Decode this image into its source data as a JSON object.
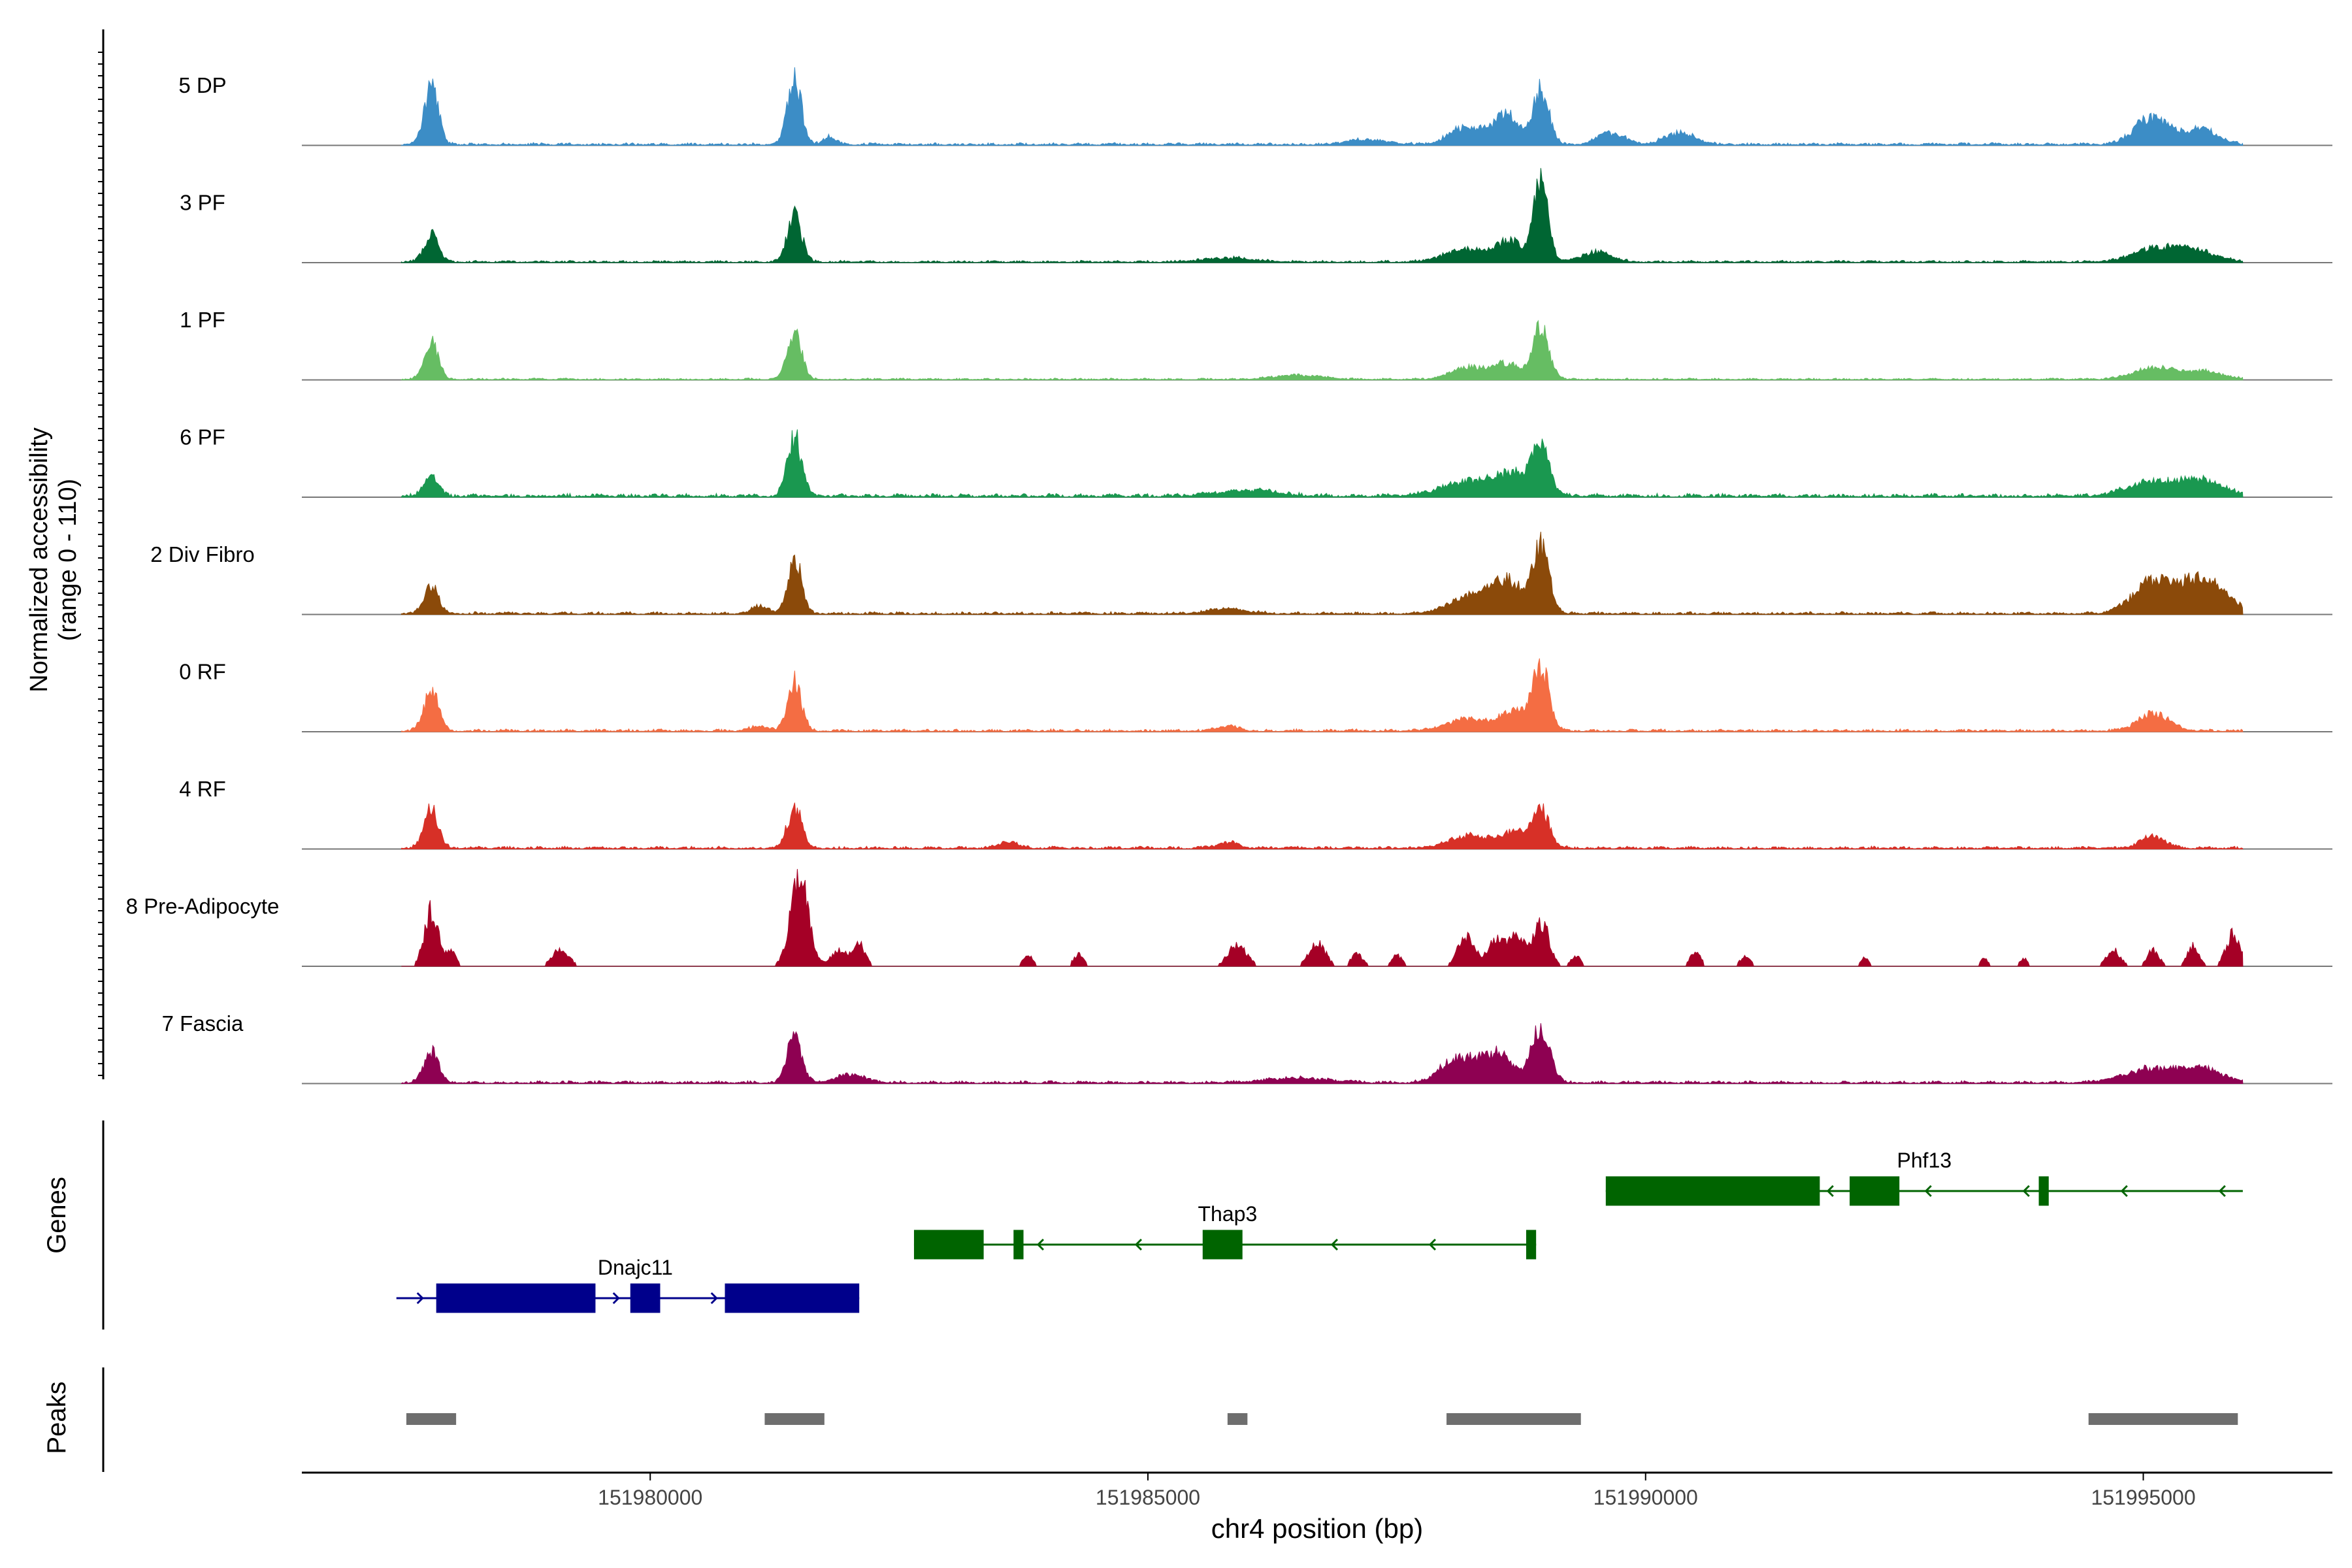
{
  "chart_data": {
    "type": "area",
    "title": "",
    "xlabel": "chr4 position (bp)",
    "region": {
      "chrom": "chr4",
      "start": 151977500,
      "end": 151996000
    },
    "xlim": [
      151976500,
      151996900
    ],
    "ylabel_lines": [
      "Normalized accessibility",
      "(range 0 - 110)"
    ],
    "ylim": [
      0,
      110
    ],
    "x_ticks": [
      {
        "value": 151980000,
        "label": "151980000"
      },
      {
        "value": 151985000,
        "label": "151985000"
      },
      {
        "value": 151990000,
        "label": "151990000"
      },
      {
        "value": 151995000,
        "label": "151995000"
      }
    ],
    "series": [
      {
        "name": "5 DP",
        "color": "#3c8dc6",
        "noise": 3.0,
        "seed": 11,
        "peaks": [
          [
            151977800,
            60,
            70
          ],
          [
            151981450,
            65,
            70
          ],
          [
            151981800,
            8,
            60
          ],
          [
            151988200,
            18,
            160
          ],
          [
            151988600,
            30,
            130
          ],
          [
            151988950,
            55,
            80
          ],
          [
            151989650,
            12,
            130
          ],
          [
            151990350,
            12,
            150
          ],
          [
            151995100,
            28,
            180
          ],
          [
            151995600,
            16,
            150
          ],
          [
            151987200,
            5,
            200
          ]
        ]
      },
      {
        "name": "3 PF",
        "color": "#006633",
        "noise": 2.5,
        "seed": 23,
        "peaks": [
          [
            151977800,
            28,
            70
          ],
          [
            151981450,
            48,
            70
          ],
          [
            151988200,
            12,
            220
          ],
          [
            151988650,
            20,
            150
          ],
          [
            151988950,
            82,
            70
          ],
          [
            151989500,
            10,
            150
          ],
          [
            151995100,
            12,
            220
          ],
          [
            151995500,
            12,
            220
          ],
          [
            151985800,
            4,
            250
          ]
        ]
      },
      {
        "name": "1 PF",
        "color": "#66bd63",
        "noise": 2.0,
        "seed": 37,
        "peaks": [
          [
            151977800,
            38,
            70
          ],
          [
            151981450,
            48,
            70
          ],
          [
            151988200,
            12,
            160
          ],
          [
            151988600,
            16,
            150
          ],
          [
            151988950,
            52,
            80
          ],
          [
            151995100,
            12,
            200
          ],
          [
            151995600,
            8,
            200
          ],
          [
            151986500,
            4,
            250
          ]
        ]
      },
      {
        "name": "6 PF",
        "color": "#1a9850",
        "noise": 4.0,
        "seed": 41,
        "peaks": [
          [
            151977800,
            22,
            70
          ],
          [
            151981450,
            60,
            70
          ],
          [
            151988200,
            14,
            260
          ],
          [
            151988700,
            22,
            200
          ],
          [
            151988950,
            45,
            80
          ],
          [
            151995100,
            14,
            250
          ],
          [
            151995600,
            14,
            220
          ],
          [
            151986000,
            6,
            300
          ]
        ]
      },
      {
        "name": "2 Div Fibro",
        "color": "#8b4a0a",
        "noise": 3.0,
        "seed": 53,
        "peaks": [
          [
            151977800,
            28,
            70
          ],
          [
            151981450,
            55,
            70
          ],
          [
            151981100,
            8,
            80
          ],
          [
            151988200,
            15,
            200
          ],
          [
            151988600,
            32,
            180
          ],
          [
            151988950,
            65,
            80
          ],
          [
            151995100,
            32,
            200
          ],
          [
            151995600,
            34,
            220
          ],
          [
            151985800,
            5,
            200
          ]
        ]
      },
      {
        "name": "0 RF",
        "color": "#f46d43",
        "noise": 3.0,
        "seed": 67,
        "peaks": [
          [
            151977800,
            42,
            70
          ],
          [
            151981450,
            50,
            70
          ],
          [
            151981100,
            5,
            80
          ],
          [
            151988200,
            12,
            200
          ],
          [
            151988700,
            20,
            160
          ],
          [
            151988950,
            60,
            80
          ],
          [
            151995100,
            18,
            150
          ],
          [
            151985800,
            5,
            100
          ]
        ]
      },
      {
        "name": "4 RF",
        "color": "#d73027",
        "noise": 3.0,
        "seed": 79,
        "peaks": [
          [
            151977800,
            40,
            70
          ],
          [
            151981450,
            42,
            70
          ],
          [
            151988200,
            12,
            200
          ],
          [
            151988700,
            16,
            170
          ],
          [
            151988950,
            36,
            80
          ],
          [
            151995100,
            12,
            120
          ],
          [
            151985800,
            6,
            100
          ],
          [
            151983600,
            6,
            100
          ]
        ]
      },
      {
        "name": "8 Pre-Adipocyte",
        "color": "#a50026",
        "noise": 0.0,
        "seed": 83,
        "sparse": true,
        "peaks": [
          [
            151977800,
            55,
            70
          ],
          [
            151978000,
            14,
            50
          ],
          [
            151979100,
            18,
            80
          ],
          [
            151981500,
            86,
            90
          ],
          [
            151981900,
            16,
            80
          ],
          [
            151982100,
            22,
            60
          ],
          [
            151983800,
            12,
            50
          ],
          [
            151984300,
            12,
            50
          ],
          [
            151985900,
            22,
            90
          ],
          [
            151986700,
            25,
            80
          ],
          [
            151987100,
            12,
            60
          ],
          [
            151987500,
            12,
            50
          ],
          [
            151988200,
            32,
            80
          ],
          [
            151988500,
            28,
            80
          ],
          [
            151988700,
            30,
            80
          ],
          [
            151988950,
            46,
            80
          ],
          [
            151989300,
            10,
            50
          ],
          [
            151990500,
            16,
            50
          ],
          [
            151991000,
            10,
            50
          ],
          [
            151994700,
            16,
            70
          ],
          [
            151995100,
            16,
            60
          ],
          [
            151995500,
            20,
            60
          ],
          [
            151995900,
            32,
            70
          ],
          [
            151992200,
            8,
            40
          ],
          [
            151993400,
            8,
            40
          ],
          [
            151993800,
            8,
            40
          ]
        ]
      },
      {
        "name": "7 Fascia",
        "color": "#8e0152",
        "noise": 3.0,
        "seed": 97,
        "peaks": [
          [
            151977800,
            32,
            70
          ],
          [
            151981450,
            50,
            70
          ],
          [
            151982000,
            8,
            150
          ],
          [
            151988100,
            24,
            160
          ],
          [
            151988500,
            30,
            160
          ],
          [
            151988950,
            55,
            90
          ],
          [
            151995100,
            14,
            280
          ],
          [
            151995600,
            12,
            200
          ],
          [
            151986500,
            5,
            300
          ]
        ]
      }
    ],
    "tracks": {
      "genes_label": "Genes",
      "peaks_label": "Peaks"
    },
    "genes": [
      {
        "name": "Dnajc11",
        "color": "#00008b",
        "strand": "+",
        "start": 151977450,
        "end": 151982100,
        "exons": [
          [
            151977850,
            151979450
          ],
          [
            151979800,
            151980100
          ],
          [
            151980750,
            151982100
          ]
        ]
      },
      {
        "name": "Thap3",
        "color": "#006400",
        "strand": "-",
        "start": 151982650,
        "end": 151988900,
        "exons": [
          [
            151982650,
            151983350
          ],
          [
            151983650,
            151983750
          ],
          [
            151985550,
            151985950
          ],
          [
            151988800,
            151988900
          ]
        ]
      },
      {
        "name": "Phf13",
        "color": "#006400",
        "strand": "-",
        "start": 151989600,
        "end": 151996000,
        "exons": [
          [
            151989600,
            151991750
          ],
          [
            151992050,
            151992550
          ],
          [
            151993950,
            151994050
          ]
        ]
      }
    ],
    "peaks": [
      [
        151977550,
        151978050
      ],
      [
        151981150,
        151981750
      ],
      [
        151985800,
        151986000
      ],
      [
        151988000,
        151989350
      ],
      [
        151994450,
        151995950
      ]
    ],
    "peak_color": "#6e6e6e"
  }
}
